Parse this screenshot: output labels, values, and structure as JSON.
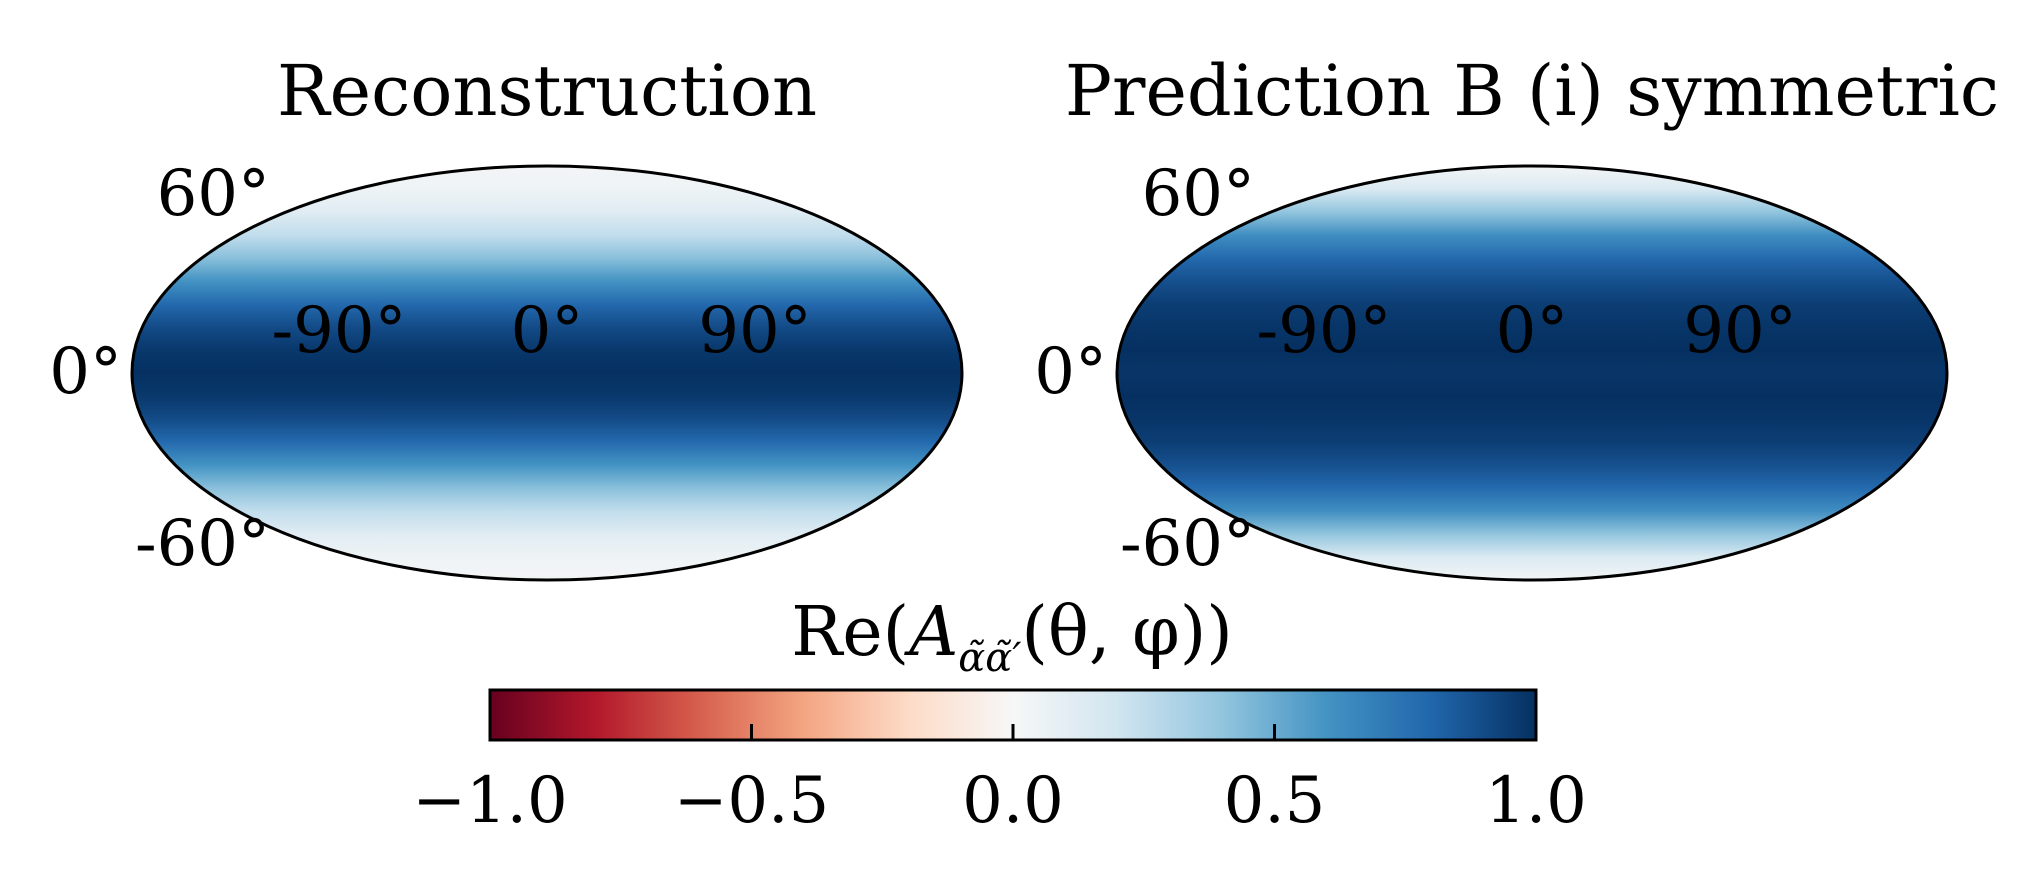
{
  "chart_data": [
    {
      "type": "heatmap",
      "projection": "mollweide",
      "title": "Reconstruction",
      "lat_ticks": [
        "60°",
        "0°",
        "-60°"
      ],
      "lon_ticks": [
        "-90°",
        "0°",
        "90°"
      ],
      "profile_lat_deg": [
        0,
        10,
        20,
        30,
        40,
        50,
        60,
        70,
        80,
        90
      ],
      "profile_value": [
        1.0,
        0.97,
        0.9,
        0.78,
        0.6,
        0.42,
        0.25,
        0.12,
        0.05,
        0.02
      ]
    },
    {
      "type": "heatmap",
      "projection": "mollweide",
      "title": "Prediction B (i) symmetric",
      "lat_ticks": [
        "60°",
        "0°",
        "-60°"
      ],
      "lon_ticks": [
        "-90°",
        "0°",
        "90°"
      ],
      "profile_lat_deg": [
        0,
        10,
        20,
        30,
        40,
        50,
        60,
        70,
        80,
        90
      ],
      "profile_value": [
        0.98,
        1.0,
        0.98,
        0.95,
        0.88,
        0.78,
        0.62,
        0.4,
        0.15,
        0.02
      ]
    }
  ],
  "colorbar": {
    "label": "Re(Ãα̃α̃′(θ, φ))",
    "label_main": "Re(",
    "label_A": "A",
    "label_sub": "α̃α̃′",
    "label_args": "(θ, φ))",
    "range": [
      -1.0,
      1.0
    ],
    "ticks": [
      -1.0,
      -0.5,
      0.0,
      0.5,
      1.0
    ],
    "tick_labels": [
      "−1.0",
      "−0.5",
      "0.0",
      "0.5",
      "1.0"
    ],
    "colormap": "RdBu",
    "colormap_stops": [
      "#67001f",
      "#b2182b",
      "#d6604d",
      "#f4a582",
      "#fddbc7",
      "#f7f7f7",
      "#d1e5f0",
      "#92c5de",
      "#4393c3",
      "#2166ac",
      "#053061"
    ]
  }
}
